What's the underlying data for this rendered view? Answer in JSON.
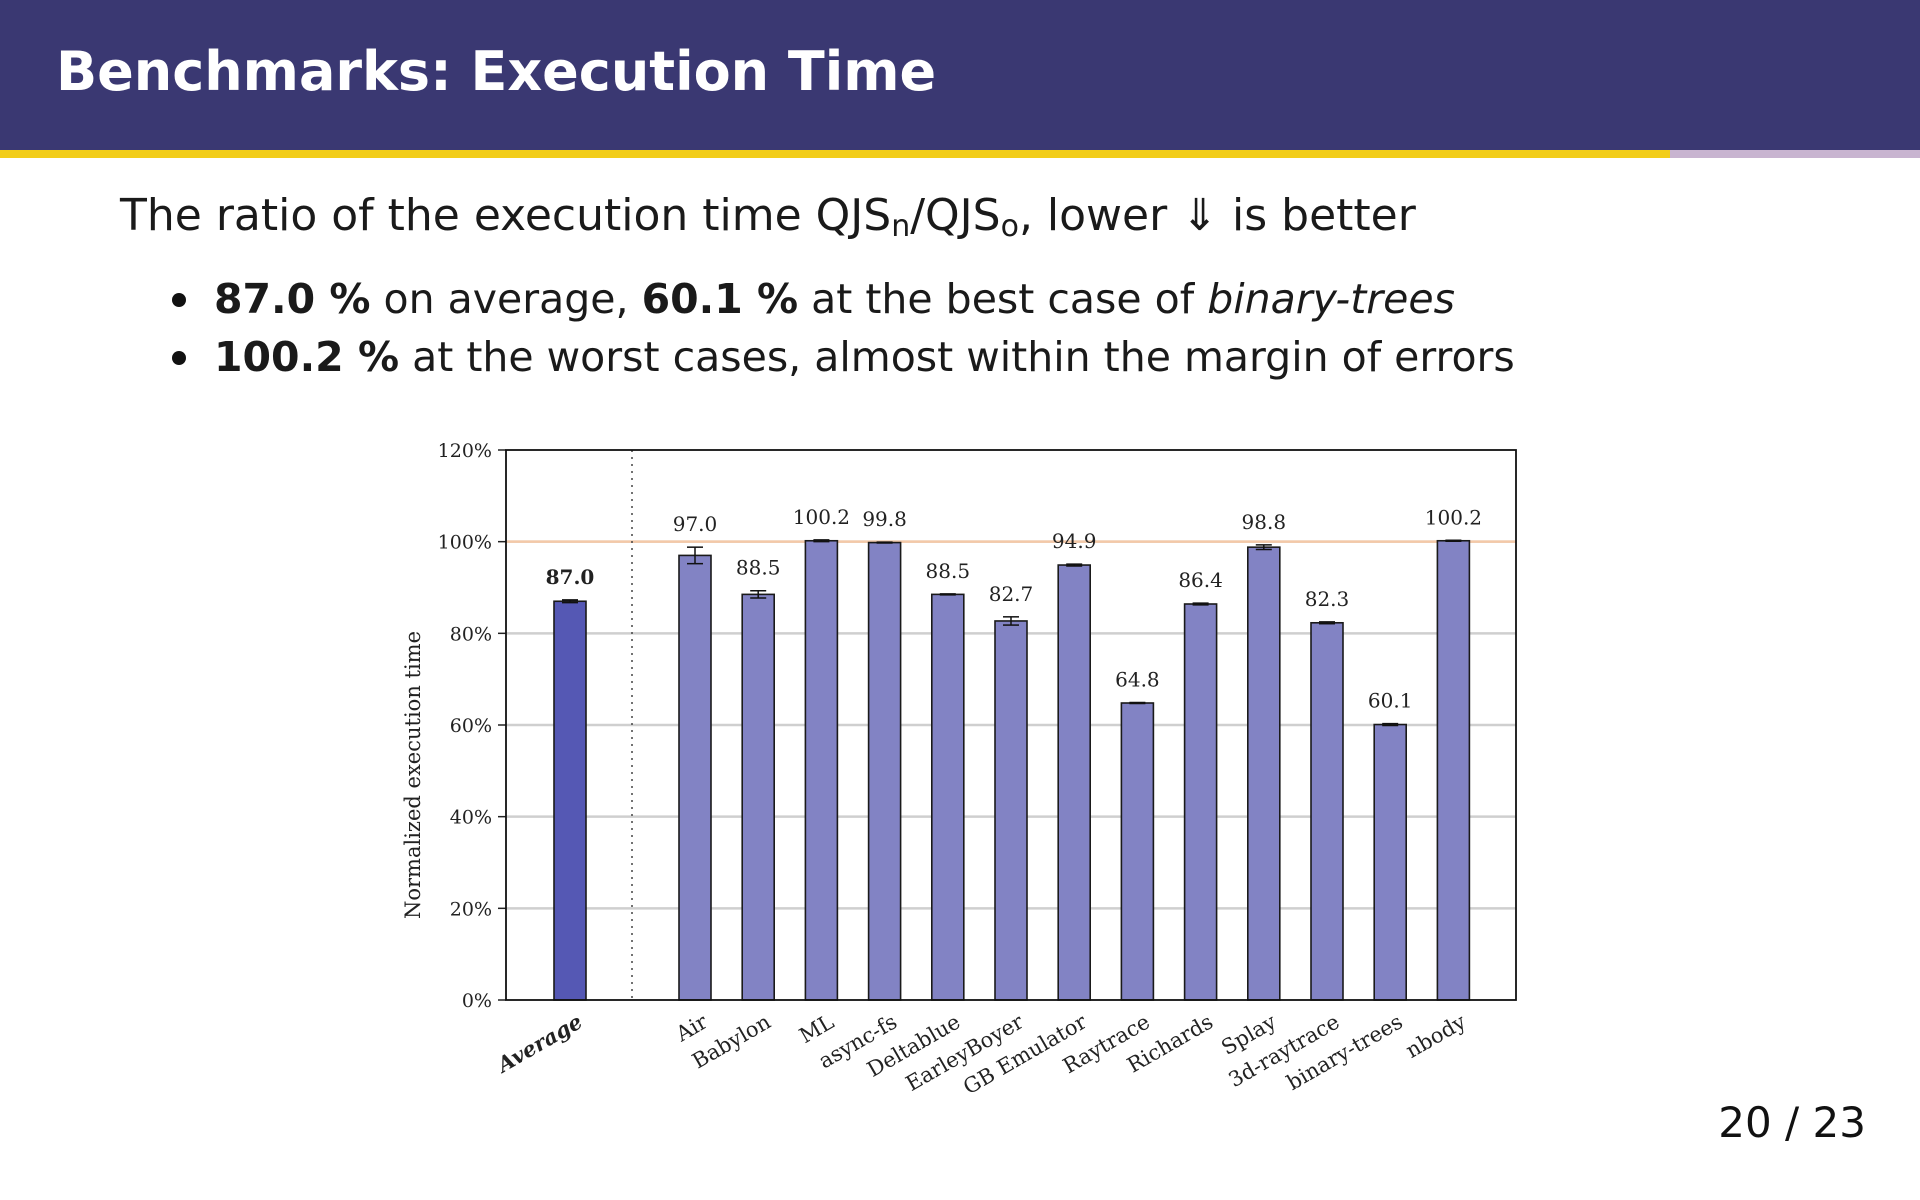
{
  "slide": {
    "title": "Benchmarks: Execution Time",
    "lead_prefix": "The ratio of the execution time QJS",
    "lead_sub_n": "n",
    "lead_mid": "/QJS",
    "lead_sub_o": "o",
    "lead_suffix": ", lower ⇓ is better",
    "bullet1": {
      "b1": "87.0 %",
      "t1": " on average, ",
      "b2": "60.1 %",
      "t2": " at the best case of ",
      "i": "binary-trees"
    },
    "bullet2": {
      "b": "100.2 %",
      "t": " at the worst cases, almost within the margin of errors"
    },
    "page": "20 / 23"
  },
  "colors": {
    "header": "#3a3872",
    "accent_yellow": "#f2cd1a",
    "accent_lilac": "#c8b4d0",
    "average_bar": "#5558b4",
    "bar": "#8283c4",
    "reference_line": "#f4c9a8"
  },
  "chart_data": {
    "type": "bar",
    "title": "",
    "xlabel": "",
    "ylabel": "Normalized execution time",
    "ylim": [
      0,
      120
    ],
    "yticks": [
      "0%",
      "20%",
      "40%",
      "60%",
      "80%",
      "100%",
      "120%"
    ],
    "reference_line": 100,
    "grid": true,
    "categories": [
      "Average",
      "Air",
      "Babylon",
      "ML",
      "async-fs",
      "Deltablue",
      "EarleyBoyer",
      "GB Emulator",
      "Raytrace",
      "Richards",
      "Splay",
      "3d-raytrace",
      "binary-trees",
      "nbody"
    ],
    "values": [
      87.0,
      97.0,
      88.5,
      100.2,
      99.8,
      88.5,
      82.7,
      94.9,
      64.8,
      86.4,
      98.8,
      82.3,
      60.1,
      100.2
    ],
    "labels": [
      "87.0",
      "97.0",
      "88.5",
      "100.2",
      "99.8",
      "88.5",
      "82.7",
      "94.9",
      "64.8",
      "86.4",
      "98.8",
      "82.3",
      "60.1",
      "100.2"
    ],
    "errors": [
      0.3,
      1.8,
      0.8,
      0.2,
      0.1,
      0.1,
      0.9,
      0.2,
      0.1,
      0.2,
      0.5,
      0.2,
      0.2,
      0.1
    ]
  }
}
